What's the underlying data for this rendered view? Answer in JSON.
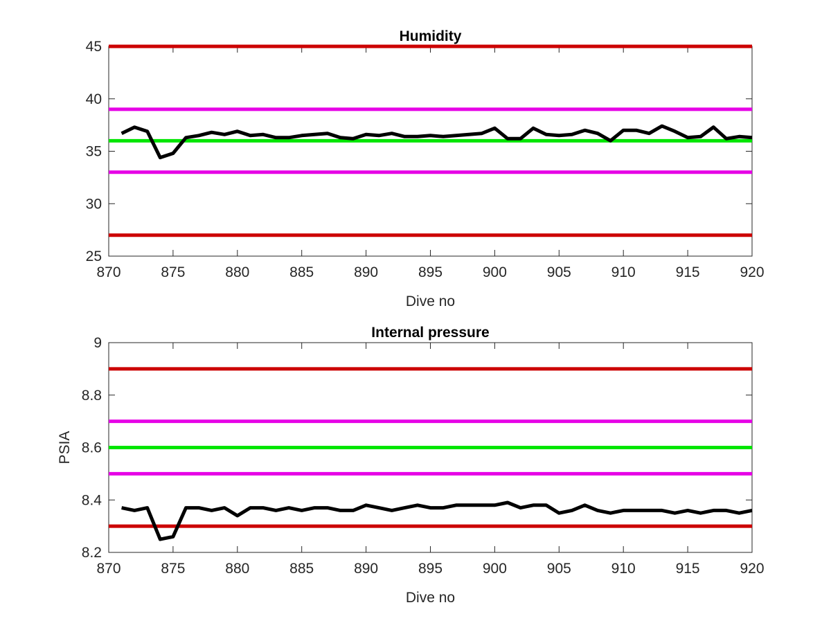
{
  "chart_data": [
    {
      "type": "line",
      "title": "Humidity",
      "xlabel": "Dive no",
      "ylabel": "",
      "xlim": [
        870,
        920
      ],
      "ylim": [
        25,
        45
      ],
      "xticks": [
        870,
        875,
        880,
        885,
        890,
        895,
        900,
        905,
        910,
        915,
        920
      ],
      "yticks": [
        25,
        30,
        35,
        40,
        45
      ],
      "xtick_labels": [
        "870",
        "875",
        "880",
        "885",
        "890",
        "895",
        "900",
        "905",
        "910",
        "915",
        "920"
      ],
      "ytick_labels": [
        "25",
        "30",
        "35",
        "40",
        "45"
      ],
      "grid": false,
      "reference_lines": [
        {
          "y": 45,
          "color": "#cc0000"
        },
        {
          "y": 39,
          "color": "#e600e6"
        },
        {
          "y": 36,
          "color": "#00e600"
        },
        {
          "y": 33,
          "color": "#e600e6"
        },
        {
          "y": 27,
          "color": "#cc0000"
        }
      ],
      "series": [
        {
          "color": "#000000",
          "x": [
            871,
            872,
            873,
            874,
            875,
            876,
            877,
            878,
            879,
            880,
            881,
            882,
            883,
            884,
            885,
            886,
            887,
            888,
            889,
            890,
            891,
            892,
            893,
            894,
            895,
            896,
            897,
            898,
            899,
            900,
            901,
            902,
            903,
            904,
            905,
            906,
            907,
            908,
            909,
            910,
            911,
            912,
            913,
            914,
            915,
            916,
            917,
            918,
            919,
            920
          ],
          "y": [
            36.7,
            37.3,
            36.9,
            34.4,
            34.8,
            36.3,
            36.5,
            36.8,
            36.6,
            36.9,
            36.5,
            36.6,
            36.3,
            36.3,
            36.5,
            36.6,
            36.7,
            36.3,
            36.2,
            36.6,
            36.5,
            36.7,
            36.4,
            36.4,
            36.5,
            36.4,
            36.5,
            36.6,
            36.7,
            37.2,
            36.2,
            36.2,
            37.2,
            36.6,
            36.5,
            36.6,
            37.0,
            36.7,
            36.0,
            37.0,
            37.0,
            36.7,
            37.4,
            36.9,
            36.3,
            36.4,
            37.3,
            36.2,
            36.4,
            36.3
          ]
        }
      ]
    },
    {
      "type": "line",
      "title": "Internal pressure",
      "xlabel": "Dive no",
      "ylabel": "PSIA",
      "xlim": [
        870,
        920
      ],
      "ylim": [
        8.2,
        9
      ],
      "xticks": [
        870,
        875,
        880,
        885,
        890,
        895,
        900,
        905,
        910,
        915,
        920
      ],
      "yticks": [
        8.2,
        8.4,
        8.6,
        8.8,
        9
      ],
      "xtick_labels": [
        "870",
        "875",
        "880",
        "885",
        "890",
        "895",
        "900",
        "905",
        "910",
        "915",
        "920"
      ],
      "ytick_labels": [
        "8.2",
        "8.4",
        "8.6",
        "8.8",
        "9"
      ],
      "grid": false,
      "reference_lines": [
        {
          "y": 8.9,
          "color": "#cc0000"
        },
        {
          "y": 8.7,
          "color": "#e600e6"
        },
        {
          "y": 8.6,
          "color": "#00e600"
        },
        {
          "y": 8.5,
          "color": "#e600e6"
        },
        {
          "y": 8.3,
          "color": "#cc0000"
        }
      ],
      "series": [
        {
          "color": "#000000",
          "x": [
            871,
            872,
            873,
            874,
            875,
            876,
            877,
            878,
            879,
            880,
            881,
            882,
            883,
            884,
            885,
            886,
            887,
            888,
            889,
            890,
            891,
            892,
            893,
            894,
            895,
            896,
            897,
            898,
            899,
            900,
            901,
            902,
            903,
            904,
            905,
            906,
            907,
            908,
            909,
            910,
            911,
            912,
            913,
            914,
            915,
            916,
            917,
            918,
            919,
            920
          ],
          "y": [
            8.37,
            8.36,
            8.37,
            8.25,
            8.26,
            8.37,
            8.37,
            8.36,
            8.37,
            8.34,
            8.37,
            8.37,
            8.36,
            8.37,
            8.36,
            8.37,
            8.37,
            8.36,
            8.36,
            8.38,
            8.37,
            8.36,
            8.37,
            8.38,
            8.37,
            8.37,
            8.38,
            8.38,
            8.38,
            8.38,
            8.39,
            8.37,
            8.38,
            8.38,
            8.35,
            8.36,
            8.38,
            8.36,
            8.35,
            8.36,
            8.36,
            8.36,
            8.36,
            8.35,
            8.36,
            8.35,
            8.36,
            8.36,
            8.35,
            8.36
          ]
        }
      ]
    }
  ]
}
